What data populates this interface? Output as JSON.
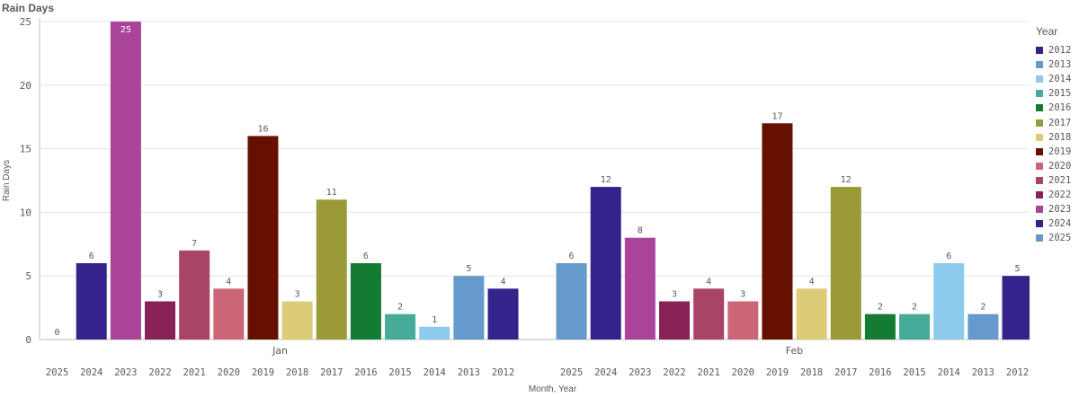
{
  "chart_data": {
    "type": "bar",
    "title": "Rain Days",
    "xlabel": "Month, Year",
    "ylabel": "Rain Days",
    "ylim": [
      0,
      25
    ],
    "yticks": [
      0,
      5,
      10,
      15,
      20,
      25
    ],
    "grid": true,
    "legend": {
      "title": "Year",
      "position": "right"
    },
    "groups": [
      {
        "label": "Jan",
        "years": [
          "2025",
          "2024",
          "2023",
          "2022",
          "2021",
          "2020",
          "2019",
          "2018",
          "2017",
          "2016",
          "2015",
          "2014",
          "2013",
          "2012"
        ],
        "values": [
          0,
          6,
          25,
          3,
          7,
          4,
          16,
          3,
          11,
          6,
          2,
          1,
          5,
          4
        ]
      },
      {
        "label": "Feb",
        "years": [
          "2025",
          "2024",
          "2023",
          "2022",
          "2021",
          "2020",
          "2019",
          "2018",
          "2017",
          "2016",
          "2015",
          "2014",
          "2013",
          "2012"
        ],
        "values": [
          6,
          12,
          8,
          3,
          4,
          3,
          17,
          4,
          12,
          2,
          2,
          6,
          2,
          5
        ]
      }
    ],
    "series": [
      {
        "name": "2012",
        "color": "#34238b"
      },
      {
        "name": "2013",
        "color": "#6699cc"
      },
      {
        "name": "2014",
        "color": "#8ccbee"
      },
      {
        "name": "2015",
        "color": "#47ab9a"
      },
      {
        "name": "2016",
        "color": "#137b34"
      },
      {
        "name": "2017",
        "color": "#9a9a38"
      },
      {
        "name": "2018",
        "color": "#dccb77"
      },
      {
        "name": "2019",
        "color": "#661100"
      },
      {
        "name": "2020",
        "color": "#cc6677"
      },
      {
        "name": "2021",
        "color": "#aa4466"
      },
      {
        "name": "2022",
        "color": "#882255"
      },
      {
        "name": "2023",
        "color": "#aa4499"
      },
      {
        "name": "2024",
        "color": "#34238b"
      },
      {
        "name": "2025",
        "color": "#6699cc"
      }
    ]
  }
}
